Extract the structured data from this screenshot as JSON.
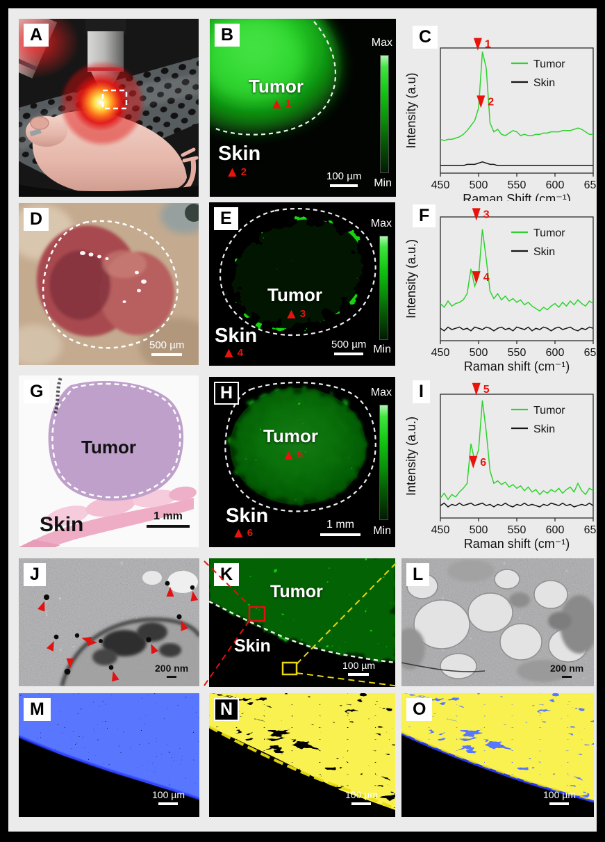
{
  "panels": {
    "A": {
      "label": "A"
    },
    "B": {
      "label": "B",
      "region_labels": {
        "tumor": "Tumor",
        "skin": "Skin"
      },
      "markers": [
        {
          "symbol": "▲",
          "num": "1"
        },
        {
          "symbol": "▲",
          "num": "2"
        }
      ],
      "scale_bar": "100 µm",
      "colorbar": {
        "max": "Max",
        "min": "Min"
      }
    },
    "C": {
      "label": "C"
    },
    "D": {
      "label": "D",
      "scale_bar": "500 µm"
    },
    "E": {
      "label": "E",
      "region_labels": {
        "tumor": "Tumor",
        "skin": "Skin"
      },
      "markers": [
        {
          "symbol": "▲",
          "num": "3"
        },
        {
          "symbol": "▲",
          "num": "4"
        }
      ],
      "scale_bar": "500 µm",
      "colorbar": {
        "max": "Max",
        "min": "Min"
      }
    },
    "F": {
      "label": "F"
    },
    "G": {
      "label": "G",
      "region_labels": {
        "tumor": "Tumor",
        "skin": "Skin"
      },
      "scale_bar": "1 mm"
    },
    "H": {
      "label": "H",
      "region_labels": {
        "tumor": "Tumor",
        "skin": "Skin"
      },
      "markers": [
        {
          "symbol": "▲",
          "num": "5"
        },
        {
          "symbol": "▲",
          "num": "6"
        }
      ],
      "scale_bar": "1 mm",
      "colorbar": {
        "max": "Max",
        "min": "Min"
      }
    },
    "I": {
      "label": "I"
    },
    "J": {
      "label": "J",
      "scale_bar": "200 nm"
    },
    "K": {
      "label": "K",
      "region_labels": {
        "tumor": "Tumor",
        "skin": "Skin"
      },
      "scale_bar": "100 µm"
    },
    "L": {
      "label": "L",
      "scale_bar": "200 nm"
    },
    "M": {
      "label": "M",
      "scale_bar": "100 µm"
    },
    "N": {
      "label": "N",
      "scale_bar": "100 µm"
    },
    "O": {
      "label": "O",
      "scale_bar": "100 µm"
    }
  },
  "colors": {
    "raman_green": "#2ed32e",
    "marker_red": "#e8140c",
    "connector_red": "#e31010",
    "connector_yellow": "#ecd60e",
    "dapi_blue": "#2233ff",
    "stain_yellow": "#f0e11c"
  },
  "chart_data": [
    {
      "type": "line",
      "title": "",
      "xlabel": "Raman Shift (cm⁻¹)",
      "ylabel": "Intensity (a.u)",
      "xlim": [
        450,
        650
      ],
      "xticks": [
        450,
        500,
        550,
        600,
        650
      ],
      "x_start": 450,
      "x_step": 5,
      "grid": false,
      "legend_position": "top-right",
      "series": [
        {
          "name": "Tumor",
          "color": "#2ed32e",
          "values": [
            0.27,
            0.26,
            0.27,
            0.27,
            0.28,
            0.29,
            0.31,
            0.34,
            0.38,
            0.42,
            0.52,
            0.97,
            0.84,
            0.4,
            0.33,
            0.35,
            0.31,
            0.3,
            0.32,
            0.34,
            0.33,
            0.3,
            0.31,
            0.3,
            0.3,
            0.31,
            0.31,
            0.32,
            0.32,
            0.33,
            0.33,
            0.33,
            0.34,
            0.34,
            0.34,
            0.35,
            0.36,
            0.35,
            0.33,
            0.31,
            0.31
          ]
        },
        {
          "name": "Skin",
          "color": "#141414",
          "values": [
            0.06,
            0.06,
            0.06,
            0.06,
            0.06,
            0.06,
            0.06,
            0.07,
            0.07,
            0.07,
            0.08,
            0.09,
            0.08,
            0.07,
            0.07,
            0.06,
            0.06,
            0.06,
            0.06,
            0.06,
            0.06,
            0.06,
            0.06,
            0.06,
            0.06,
            0.06,
            0.06,
            0.06,
            0.06,
            0.06,
            0.06,
            0.06,
            0.06,
            0.06,
            0.06,
            0.06,
            0.06,
            0.06,
            0.06,
            0.06,
            0.06
          ]
        }
      ],
      "annotations": [
        {
          "label": "1",
          "x": 499,
          "y": 0.98
        },
        {
          "label": "2",
          "x": 503,
          "y": 0.52
        }
      ]
    },
    {
      "type": "line",
      "title": "",
      "xlabel": "Raman shift (cm⁻¹)",
      "ylabel": "Intensity (a.u.)",
      "xlim": [
        450,
        650
      ],
      "xticks": [
        450,
        500,
        550,
        600,
        650
      ],
      "x_start": 450,
      "x_step": 5,
      "grid": false,
      "legend_position": "top-right",
      "series": [
        {
          "name": "Tumor",
          "color": "#2ed32e",
          "values": [
            0.3,
            0.27,
            0.32,
            0.28,
            0.3,
            0.31,
            0.33,
            0.38,
            0.58,
            0.44,
            0.52,
            0.9,
            0.66,
            0.4,
            0.34,
            0.38,
            0.33,
            0.36,
            0.32,
            0.34,
            0.31,
            0.33,
            0.29,
            0.31,
            0.28,
            0.26,
            0.24,
            0.27,
            0.25,
            0.28,
            0.3,
            0.27,
            0.31,
            0.28,
            0.32,
            0.29,
            0.33,
            0.3,
            0.28,
            0.32,
            0.3
          ]
        },
        {
          "name": "Skin",
          "color": "#141414",
          "values": [
            0.1,
            0.08,
            0.11,
            0.09,
            0.1,
            0.11,
            0.09,
            0.1,
            0.08,
            0.11,
            0.1,
            0.09,
            0.11,
            0.1,
            0.08,
            0.1,
            0.11,
            0.09,
            0.1,
            0.08,
            0.11,
            0.1,
            0.09,
            0.11,
            0.08,
            0.1,
            0.09,
            0.11,
            0.1,
            0.08,
            0.1,
            0.11,
            0.09,
            0.1,
            0.11,
            0.09,
            0.08,
            0.1,
            0.09,
            0.11,
            0.1
          ]
        }
      ],
      "annotations": [
        {
          "label": "3",
          "x": 497,
          "y": 0.97
        },
        {
          "label": "4",
          "x": 497,
          "y": 0.46
        }
      ]
    },
    {
      "type": "line",
      "title": "",
      "xlabel": "Raman shift (cm⁻¹)",
      "ylabel": "Intensity (a.u.)",
      "xlim": [
        450,
        650
      ],
      "xticks": [
        450,
        500,
        550,
        600,
        650
      ],
      "x_start": 450,
      "x_step": 5,
      "grid": false,
      "legend_position": "top-right",
      "series": [
        {
          "name": "Tumor",
          "color": "#2ed32e",
          "values": [
            0.16,
            0.2,
            0.15,
            0.19,
            0.17,
            0.21,
            0.24,
            0.28,
            0.6,
            0.46,
            0.55,
            0.95,
            0.7,
            0.38,
            0.28,
            0.3,
            0.27,
            0.29,
            0.25,
            0.27,
            0.24,
            0.26,
            0.22,
            0.25,
            0.21,
            0.23,
            0.19,
            0.22,
            0.2,
            0.23,
            0.21,
            0.24,
            0.2,
            0.23,
            0.25,
            0.21,
            0.28,
            0.22,
            0.19,
            0.24,
            0.22
          ]
        },
        {
          "name": "Skin",
          "color": "#141414",
          "values": [
            0.1,
            0.12,
            0.09,
            0.11,
            0.1,
            0.12,
            0.1,
            0.11,
            0.12,
            0.1,
            0.11,
            0.12,
            0.1,
            0.11,
            0.09,
            0.11,
            0.1,
            0.12,
            0.1,
            0.09,
            0.11,
            0.1,
            0.12,
            0.1,
            0.11,
            0.1,
            0.09,
            0.11,
            0.1,
            0.12,
            0.11,
            0.1,
            0.12,
            0.1,
            0.11,
            0.09,
            0.1,
            0.11,
            0.1,
            0.12,
            0.1
          ]
        }
      ],
      "annotations": [
        {
          "label": "5",
          "x": 497,
          "y": 0.99
        },
        {
          "label": "6",
          "x": 493,
          "y": 0.4
        }
      ]
    }
  ]
}
